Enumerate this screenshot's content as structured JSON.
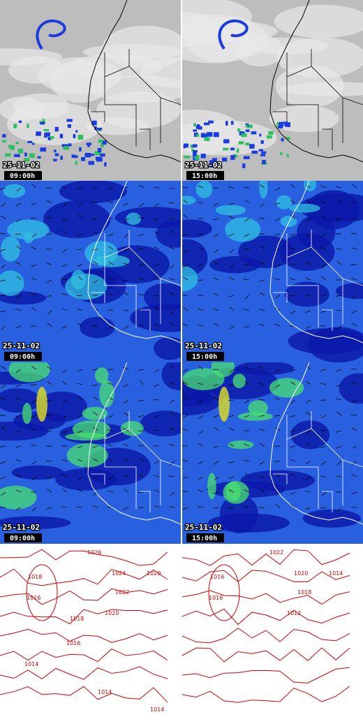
{
  "panels": [
    {
      "date": "25-11-02",
      "time": "09:00h"
    },
    {
      "date": "25-11-02",
      "time": "15:00h"
    },
    {
      "date": "25-11-02",
      "time": "09:00h"
    },
    {
      "date": "25-11-02",
      "time": "15:00h"
    },
    {
      "date": "25-11-02",
      "time": "09:00h"
    },
    {
      "date": "25-11-02",
      "time": "15:00h"
    }
  ],
  "contour_maps": [
    {
      "labels": [
        "1026",
        "1024",
        "1022",
        "1018",
        "1016",
        "1020",
        "1020",
        "1018",
        "1016",
        "1014",
        "1014",
        "1014"
      ]
    },
    {
      "labels": [
        "1022",
        "1020",
        "1018",
        "1016",
        "1016",
        "1014",
        "1012"
      ]
    }
  ]
}
